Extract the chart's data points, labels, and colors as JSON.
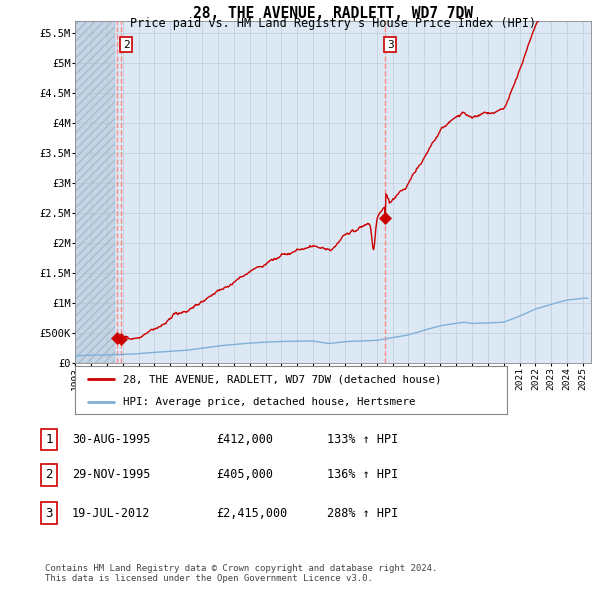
{
  "title": "28, THE AVENUE, RADLETT, WD7 7DW",
  "subtitle": "Price paid vs. HM Land Registry's House Price Index (HPI)",
  "ylim": [
    0,
    5700000
  ],
  "yticks": [
    0,
    500000,
    1000000,
    1500000,
    2000000,
    2500000,
    3000000,
    3500000,
    4000000,
    4500000,
    5000000,
    5500000
  ],
  "ytick_labels": [
    "£0",
    "£500K",
    "£1M",
    "£1.5M",
    "£2M",
    "£2.5M",
    "£3M",
    "£3.5M",
    "£4M",
    "£4.5M",
    "£5M",
    "£5.5M"
  ],
  "xlim_start": 1993.0,
  "xlim_end": 2025.5,
  "background_color": "#dce9f5",
  "hatch_color": "#c8d8ea",
  "grid_color": "#b0bec8",
  "sale_points": [
    {
      "date": 1995.658,
      "price": 412000,
      "label": "1"
    },
    {
      "date": 1995.912,
      "price": 405000,
      "label": "2"
    },
    {
      "date": 2012.542,
      "price": 2415000,
      "label": "3"
    }
  ],
  "sale_color": "#cc0000",
  "hpi_color": "#7fb0d8",
  "legend_sale_label": "28, THE AVENUE, RADLETT, WD7 7DW (detached house)",
  "legend_hpi_label": "HPI: Average price, detached house, Hertsmere",
  "table_rows": [
    {
      "num": "1",
      "date": "30-AUG-1995",
      "price": "£412,000",
      "hpi": "133% ↑ HPI"
    },
    {
      "num": "2",
      "date": "29-NOV-1995",
      "price": "£405,000",
      "hpi": "136% ↑ HPI"
    },
    {
      "num": "3",
      "date": "19-JUL-2012",
      "price": "£2,415,000",
      "hpi": "288% ↑ HPI"
    }
  ],
  "footnote": "Contains HM Land Registry data © Crown copyright and database right 2024.\nThis data is licensed under the Open Government Licence v3.0.",
  "dashed_line_color": "#ff8888",
  "marker_color": "#cc0000",
  "label_box_positions": [
    {
      "date": 1995.912,
      "label": "2"
    },
    {
      "date": 2012.542,
      "label": "3"
    }
  ]
}
